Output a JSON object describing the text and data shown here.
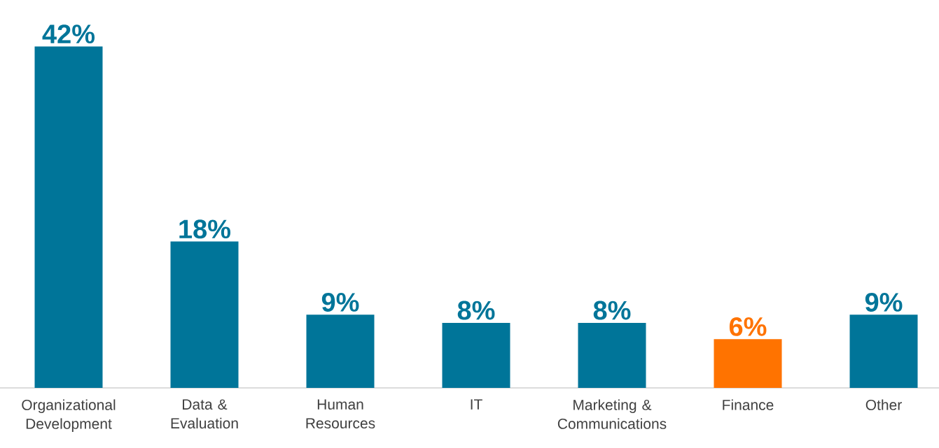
{
  "chart_data": {
    "type": "bar",
    "categories": [
      "Organizational Development",
      "Data & Evaluation",
      "Human Resources",
      "IT",
      "Marketing & Communications",
      "Finance",
      "Other"
    ],
    "values": [
      42,
      18,
      9,
      8,
      8,
      6,
      9
    ],
    "value_labels": [
      "42%",
      "18%",
      "9%",
      "8%",
      "8%",
      "6%",
      "9%"
    ],
    "colors": [
      "#007599",
      "#007599",
      "#007599",
      "#007599",
      "#007599",
      "#ff7300",
      "#007599"
    ]
  }
}
